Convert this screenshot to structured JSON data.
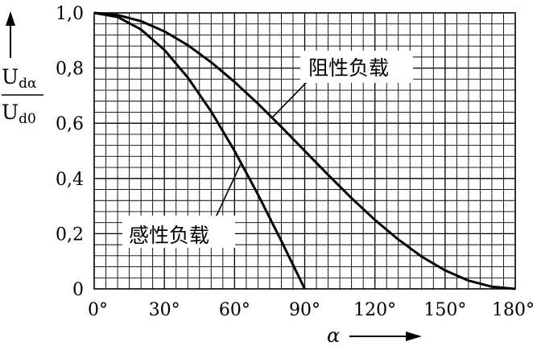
{
  "chart_data": {
    "type": "line",
    "xlabel": "α",
    "ylabel_numerator": "U",
    "ylabel_numerator_sub": "dα",
    "ylabel_denominator": "U",
    "ylabel_denominator_sub": "d0",
    "xlim": [
      0,
      180
    ],
    "ylim": [
      0,
      1.0
    ],
    "grid": true,
    "x_tick_labels": [
      "0°",
      "30°",
      "60°",
      "90°",
      "120°",
      "150°",
      "180°"
    ],
    "x_ticks": [
      0,
      30,
      60,
      90,
      120,
      150,
      180
    ],
    "y_tick_labels": [
      "0",
      "0,2",
      "0,4",
      "0,6",
      "0,8",
      "1,0"
    ],
    "y_ticks": [
      0,
      0.2,
      0.4,
      0.6,
      0.8,
      1.0
    ],
    "series": [
      {
        "name": "阻性负载",
        "x": [
          0,
          10,
          20,
          30,
          40,
          50,
          60,
          70,
          80,
          90,
          100,
          110,
          120,
          130,
          140,
          150,
          160,
          170,
          180
        ],
        "values": [
          1.0,
          0.992,
          0.97,
          0.933,
          0.883,
          0.821,
          0.75,
          0.671,
          0.587,
          0.5,
          0.413,
          0.329,
          0.25,
          0.179,
          0.117,
          0.067,
          0.03,
          0.008,
          0.0
        ]
      },
      {
        "name": "感性负载",
        "x": [
          0,
          10,
          20,
          30,
          40,
          50,
          60,
          70,
          80,
          90
        ],
        "values": [
          1.0,
          0.985,
          0.94,
          0.866,
          0.766,
          0.643,
          0.5,
          0.342,
          0.174,
          0.0
        ]
      }
    ],
    "annotations": [
      {
        "text": "阻性负载",
        "series": 0
      },
      {
        "text": "感性负载",
        "series": 1
      }
    ]
  }
}
